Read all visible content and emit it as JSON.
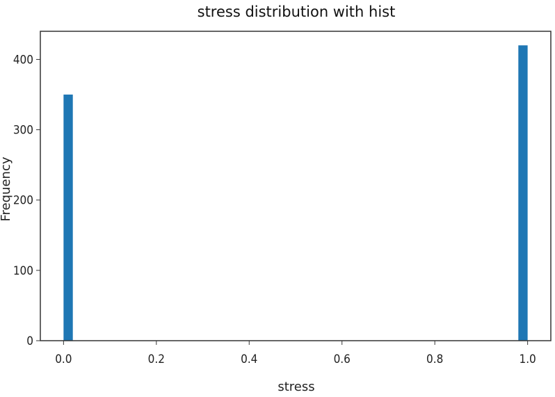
{
  "chart_data": {
    "type": "bar",
    "title": "stress distribution with hist",
    "xlabel": "stress",
    "ylabel": "Frequency",
    "xlim": [
      -0.05,
      1.05
    ],
    "ylim": [
      0,
      440
    ],
    "xticks": [
      "0.0",
      "0.2",
      "0.4",
      "0.6",
      "0.8",
      "1.0"
    ],
    "yticks": [
      "0",
      "100",
      "200",
      "300",
      "400"
    ],
    "bins": [
      {
        "x0": 0.0,
        "x1": 0.02,
        "value": 350
      },
      {
        "x0": 0.98,
        "x1": 1.0,
        "value": 420
      }
    ],
    "bar_color": "#1f77b4",
    "grid": false,
    "legend": "none"
  }
}
